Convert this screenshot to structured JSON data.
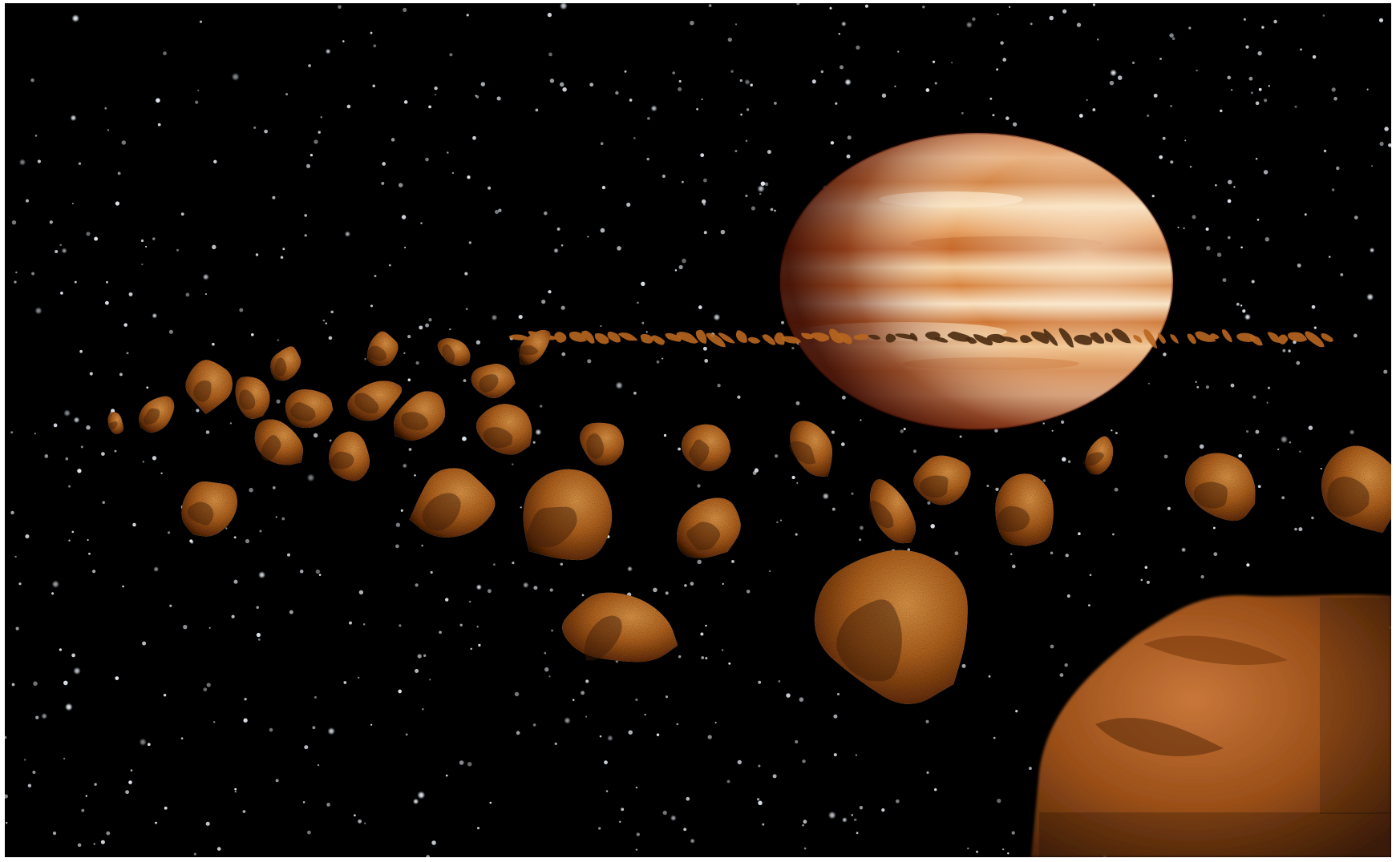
{
  "scene": {
    "subjects": [
      "starfield",
      "gas-giant-planet",
      "asteroid-belt"
    ],
    "colors": {
      "space": "#000000",
      "star": "#e8ecf2",
      "planet_light": "#f6ddb8",
      "planet_band": "#d8813a",
      "planet_dark": "#8c2a0e",
      "rock_light": "#d98a3a",
      "rock_mid": "#a85a1c",
      "rock_dark": "#3a1a06"
    }
  }
}
